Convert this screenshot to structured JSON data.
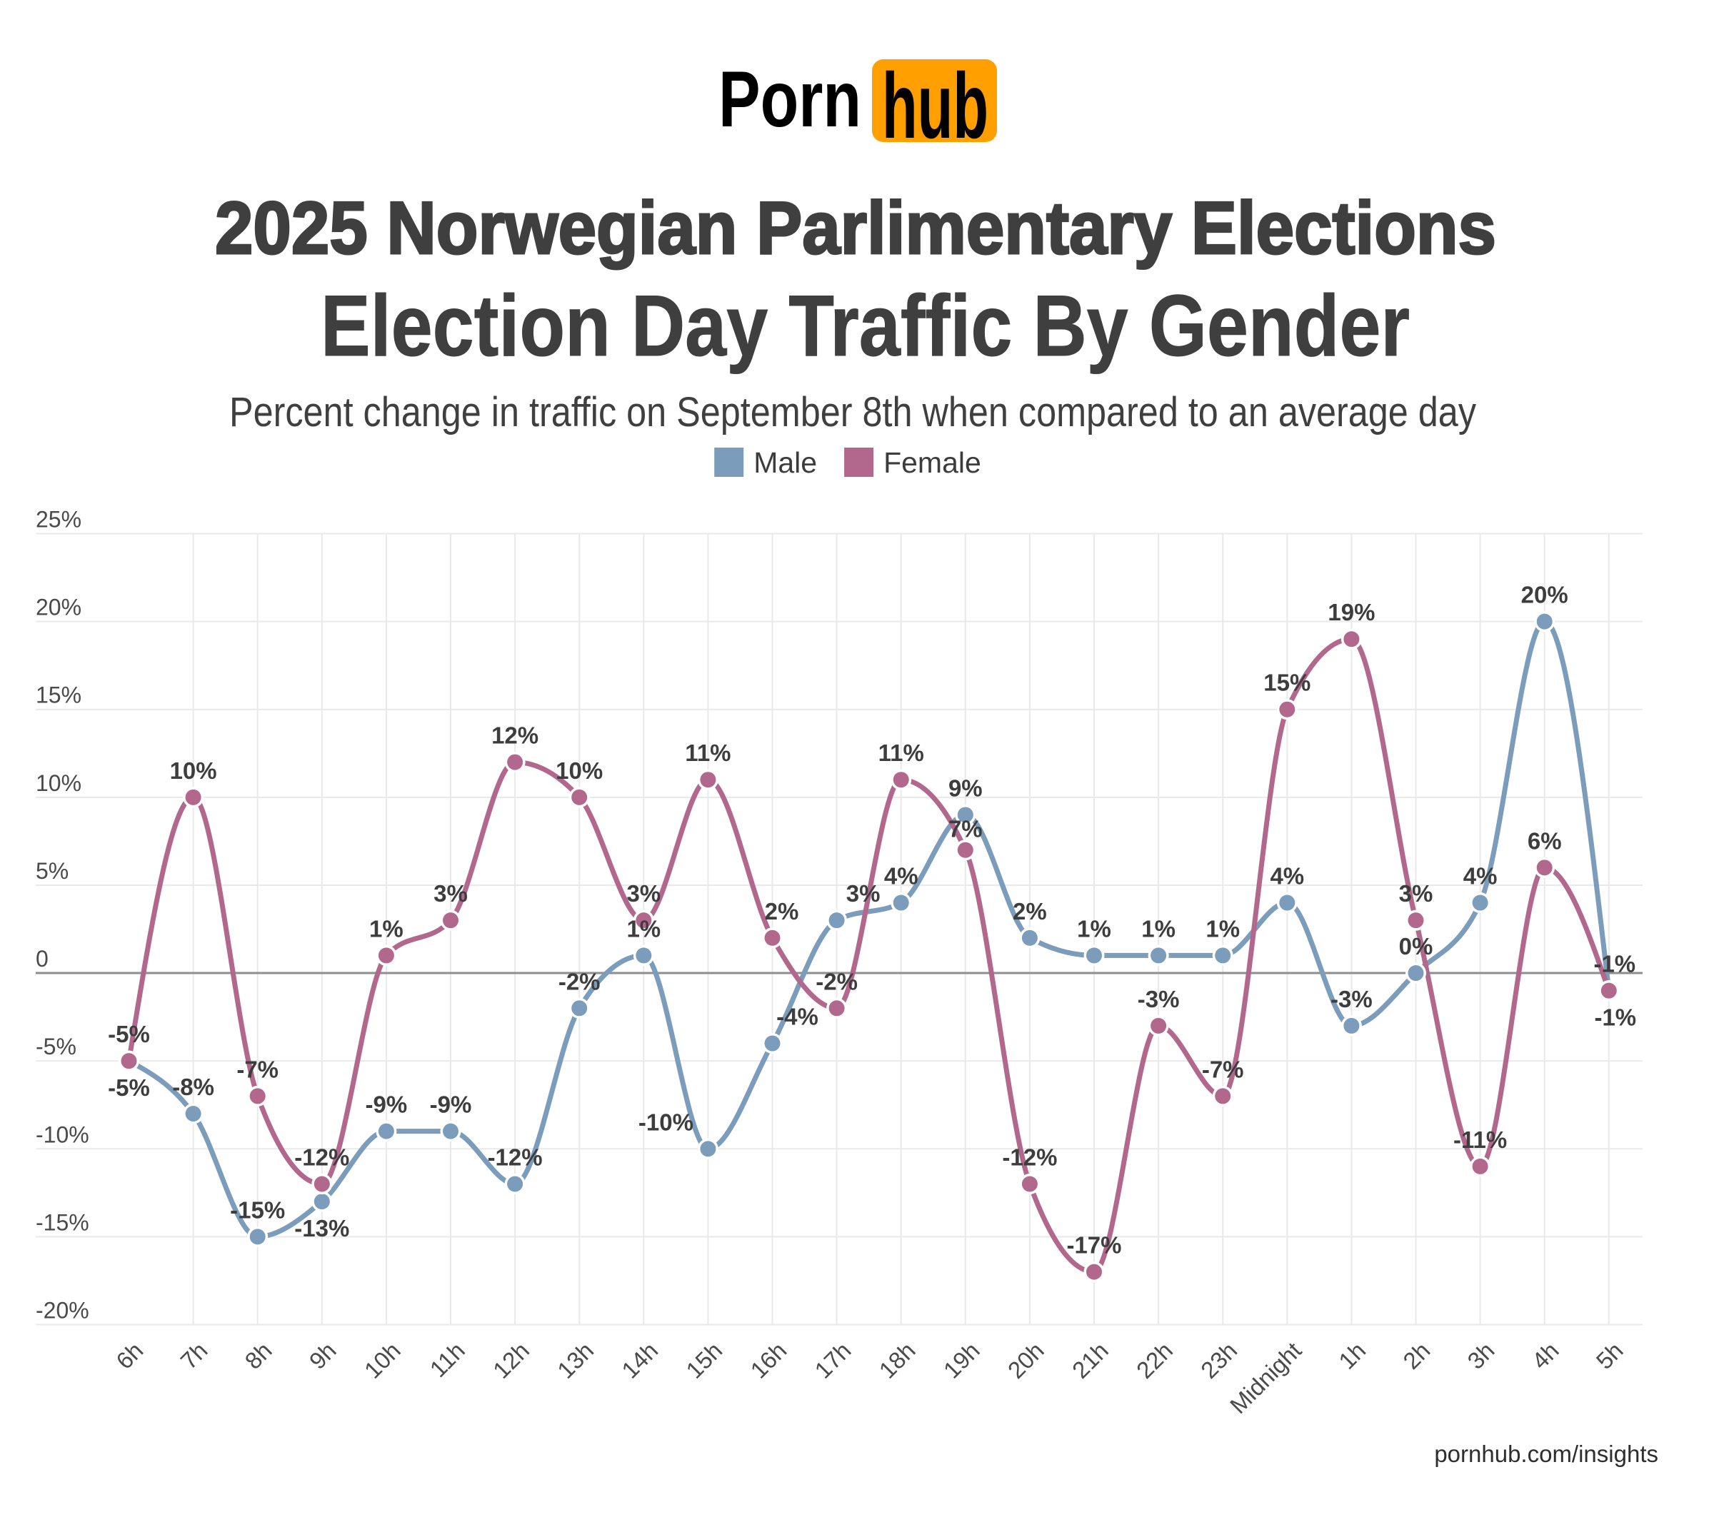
{
  "page": {
    "background": "#ffffff"
  },
  "logo": {
    "part1": "Porn",
    "part2": "hub",
    "orange": "#ff9f00",
    "text_color": "#000000"
  },
  "header": {
    "title": "2025 Norwegian Parlimentary Elections",
    "subtitle": "Election Day Traffic By Gender",
    "description": "Percent change in traffic on September 8th when compared to an average day"
  },
  "legend": [
    {
      "label": "Male",
      "color": "#7b9cba"
    },
    {
      "label": "Female",
      "color": "#b1688c"
    }
  ],
  "footer": {
    "text": "pornhub.com/insights"
  },
  "chart_data": {
    "type": "line",
    "title": "Election Day Traffic By Gender",
    "xlabel": "",
    "ylabel": "",
    "categories": [
      "6h",
      "7h",
      "8h",
      "9h",
      "10h",
      "11h",
      "12h",
      "13h",
      "14h",
      "15h",
      "16h",
      "17h",
      "18h",
      "19h",
      "20h",
      "21h",
      "22h",
      "23h",
      "Midnight",
      "1h",
      "2h",
      "3h",
      "4h",
      "5h"
    ],
    "series": [
      {
        "name": "Male",
        "color": "#7b9cba",
        "values": [
          -5,
          -8,
          -15,
          -13,
          -9,
          -9,
          -12,
          -2,
          1,
          -10,
          -4,
          3,
          4,
          9,
          2,
          1,
          1,
          1,
          4,
          -3,
          0,
          4,
          20,
          -1
        ],
        "point_labels": [
          "-5%",
          "-8%",
          "-15%",
          "-13%",
          "-9%",
          "-9%",
          "-12%",
          "-2%",
          "1%",
          "-10%",
          "-4%",
          "3%",
          "4%",
          "9%",
          "2%",
          "1%",
          "1%",
          "1%",
          "4%",
          "-3%",
          "0%",
          "4%",
          "20%",
          "-1%"
        ],
        "label_below": [
          0,
          3
        ],
        "label_dx": {
          "9": -59,
          "10": 35,
          "11": 37,
          "23": 8
        },
        "label_dy": {}
      },
      {
        "name": "Female",
        "color": "#b1688c",
        "values": [
          -5,
          10,
          -7,
          -12,
          1,
          3,
          12,
          10,
          3,
          11,
          2,
          -2,
          11,
          7,
          -12,
          -17,
          -3,
          -7,
          15,
          19,
          3,
          -11,
          6,
          -1
        ],
        "point_labels": [
          "-5%",
          "10%",
          "-7%",
          "-12%",
          "1%",
          "3%",
          "12%",
          "10%",
          "3%",
          "11%",
          "2%",
          "-2%",
          "11%",
          "7%",
          "-12%",
          "-17%",
          "-3%",
          "-7%",
          "15%",
          "19%",
          "3%",
          "-11%",
          "6%",
          "-1%"
        ],
        "label_below": [
          23
        ],
        "label_dx": {
          "10": 13,
          "23": 9
        },
        "label_dy": {
          "13": 8
        }
      }
    ],
    "ylim": [
      -20,
      25
    ],
    "yticks": [
      {
        "value": 25,
        "label": "25%"
      },
      {
        "value": 20,
        "label": "20%"
      },
      {
        "value": 15,
        "label": "15%"
      },
      {
        "value": 10,
        "label": "10%"
      },
      {
        "value": 5,
        "label": "5%"
      },
      {
        "value": 0,
        "label": "0"
      },
      {
        "value": -5,
        "label": "-5%"
      },
      {
        "value": -10,
        "label": "-10%"
      },
      {
        "value": -15,
        "label": "-15%"
      },
      {
        "value": -20,
        "label": "-20%"
      }
    ],
    "grid": true,
    "zero_line": true,
    "legend_position": "top",
    "colors": {
      "grid": "#e9e9e9",
      "zero_line": "#8e8e8e",
      "data_label": "#3d3d3d",
      "tick_label": "#4a4a4a"
    }
  }
}
